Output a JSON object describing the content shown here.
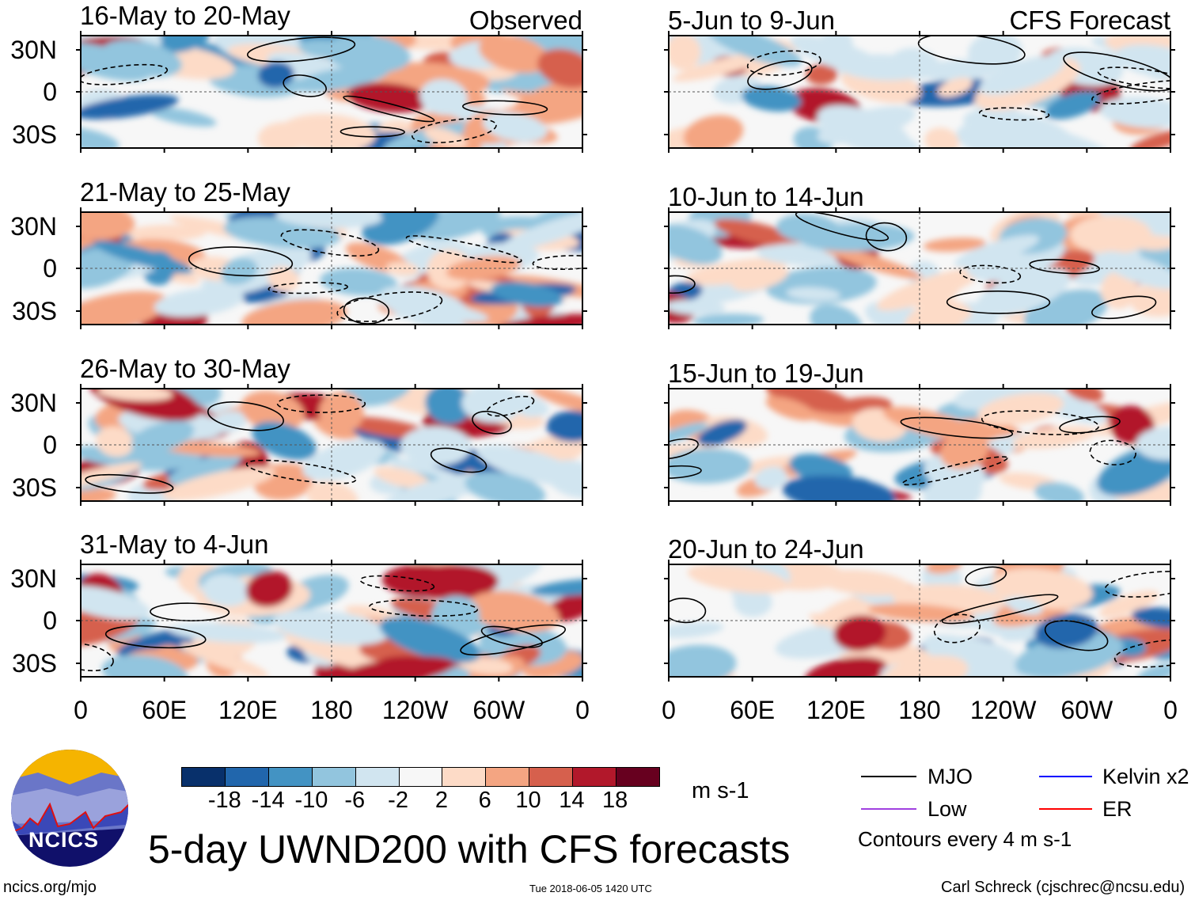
{
  "panels": [
    {
      "title": "16-May to 20-May",
      "tag": "Observed",
      "side": "left",
      "row": 0
    },
    {
      "title": "21-May to 25-May",
      "side": "left",
      "row": 1
    },
    {
      "title": "26-May to 30-May",
      "side": "left",
      "row": 2
    },
    {
      "title": "31-May to 4-Jun",
      "side": "left",
      "row": 3
    },
    {
      "title": "5-Jun to 9-Jun",
      "tag": "CFS Forecast",
      "side": "right",
      "row": 0
    },
    {
      "title": "10-Jun to 14-Jun",
      "side": "right",
      "row": 1
    },
    {
      "title": "15-Jun to 19-Jun",
      "side": "right",
      "row": 2
    },
    {
      "title": "20-Jun to 24-Jun",
      "side": "right",
      "row": 3
    }
  ],
  "lat_labels": [
    "30N",
    "0",
    "30S"
  ],
  "lon_labels": [
    "0",
    "60E",
    "120E",
    "180",
    "120W",
    "60W",
    "0"
  ],
  "colorbar": {
    "colors": [
      "#08306b",
      "#2166ac",
      "#4393c3",
      "#92c5de",
      "#d1e5f0",
      "#f7f7f7",
      "#fddbc7",
      "#f4a582",
      "#d6604d",
      "#b2182b",
      "#67001f"
    ],
    "ticks": [
      "-18",
      "-14",
      "-10",
      "-6",
      "-2",
      "2",
      "6",
      "10",
      "14",
      "18"
    ],
    "units": "m s-1"
  },
  "legend": {
    "items": [
      {
        "label": "MJO",
        "color": "#000000"
      },
      {
        "label": "Kelvin x2",
        "color": "#0000ff"
      },
      {
        "label": "Low",
        "color": "#a040e0"
      },
      {
        "label": "ER",
        "color": "#ff0000"
      }
    ],
    "note": "Contours every 4 m s-1"
  },
  "title": "5-day UWND200 with CFS forecasts",
  "logo_text": "NCICS",
  "footer": {
    "url": "ncics.org/mjo",
    "timestamp": "Tue 2018-06-05 1420 UTC",
    "author": "Carl Schreck (cjschrec@ncsu.edu)"
  }
}
